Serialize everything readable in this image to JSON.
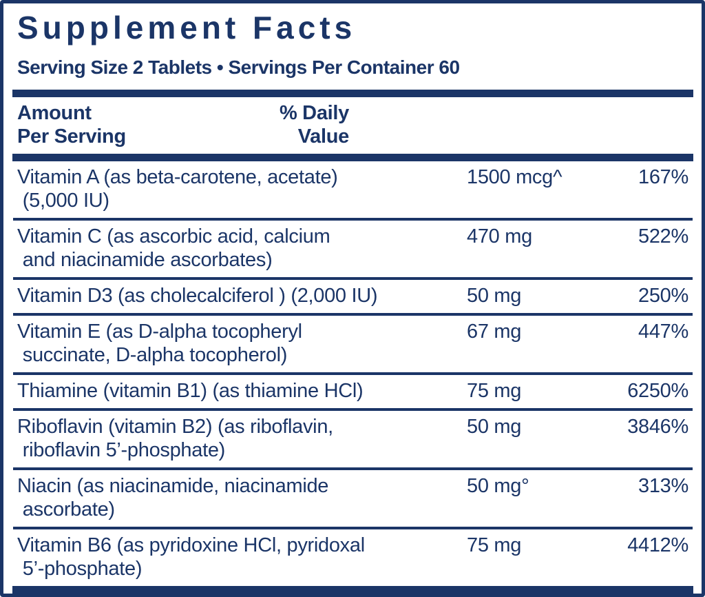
{
  "title": "Supplement Facts",
  "serving_line": "Serving Size 2 Tablets • Servings Per Container 60",
  "columns": {
    "amount_header": "Amount\nPer Serving",
    "daily_value_header": "% Daily\nValue"
  },
  "colors": {
    "navy": "#1b3567",
    "background": "#ffffff"
  },
  "rows": [
    {
      "name": "Vitamin A (as beta-carotene, acetate)\n (5,000 IU)",
      "amount": "1500 mcg^",
      "daily_value": "167%"
    },
    {
      "name": "Vitamin C (as ascorbic acid, calcium\n and niacinamide ascorbates)",
      "amount": "470 mg",
      "daily_value": "522%"
    },
    {
      "name": "Vitamin D3 (as cholecalciferol ) (2,000 IU)",
      "amount": "50 mg",
      "daily_value": "250%"
    },
    {
      "name": "Vitamin E (as D-alpha tocopheryl\n succinate, D-alpha tocopherol)",
      "amount": "67 mg",
      "daily_value": "447%"
    },
    {
      "name": "Thiamine (vitamin B1) (as thiamine HCl)",
      "amount": "75 mg",
      "daily_value": "6250%"
    },
    {
      "name": "Riboflavin (vitamin B2) (as riboflavin,\n riboflavin 5’-phosphate)",
      "amount": "50 mg",
      "daily_value": "3846%"
    },
    {
      "name": "Niacin (as niacinamide, niacinamide\n ascorbate)",
      "amount": "50 mg°",
      "daily_value": "313%"
    },
    {
      "name": "Vitamin B6 (as pyridoxine HCl, pyridoxal\n 5’-phosphate)",
      "amount": "75 mg",
      "daily_value": "4412%"
    }
  ]
}
